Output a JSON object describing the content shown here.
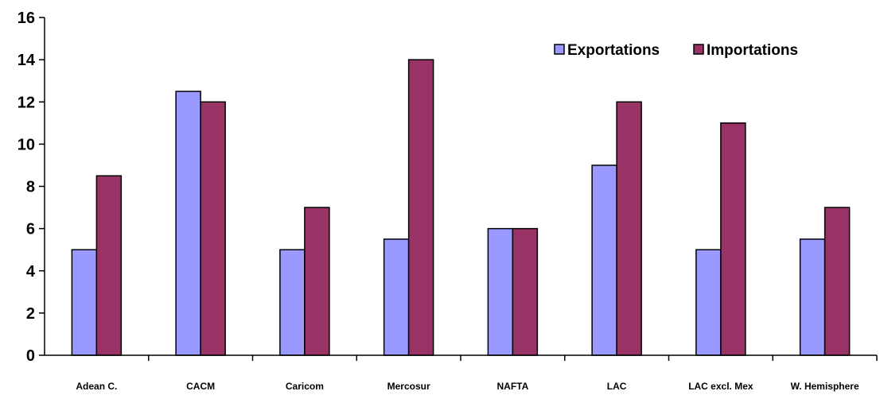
{
  "chart_data": {
    "type": "bar",
    "title": "",
    "xlabel": "",
    "ylabel": "",
    "categories": [
      "Adean C.",
      "CACM",
      "Caricom",
      "Mercosur",
      "NAFTA",
      "LAC",
      "LAC excl. Mex",
      "W. Hemisphere"
    ],
    "series": [
      {
        "name": "Exportations",
        "values": [
          5,
          12.5,
          5,
          5.5,
          6,
          9,
          5,
          5.5
        ],
        "color": "#9999ff"
      },
      {
        "name": "Importations",
        "values": [
          8.5,
          12,
          7,
          14,
          6,
          12,
          11,
          7
        ],
        "color": "#993366"
      }
    ],
    "ylim": [
      0,
      16
    ],
    "yticks": [
      "0",
      "2",
      "4",
      "6",
      "8",
      "10",
      "12",
      "14",
      "16"
    ],
    "grid": false,
    "legend_position": "top-right"
  }
}
